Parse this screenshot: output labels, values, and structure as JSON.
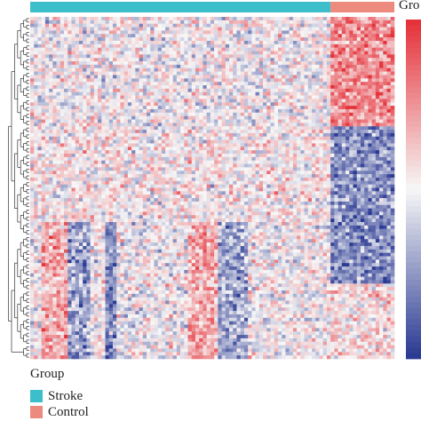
{
  "chart_data": {
    "type": "heatmap",
    "annotation_track": {
      "label": "Gro",
      "segments": [
        {
          "group": "Stroke",
          "columns": 80
        },
        {
          "group": "Control",
          "columns": 17
        }
      ]
    },
    "legend": {
      "title": "Group",
      "entries": [
        {
          "name": "Stroke",
          "color": "#3dbecb"
        },
        {
          "name": "Control",
          "color": "#ec8a7e"
        }
      ]
    },
    "colors": {
      "high": "#e5323a",
      "mid": "#f7f7f7",
      "low": "#2b3a93"
    },
    "n_rows": 100,
    "n_cols": 97,
    "row_clusters": [
      {
        "rows": 32,
        "stroke_mean": 0.0,
        "control_mean": 0.85
      },
      {
        "rows": 28,
        "stroke_mean": 0.1,
        "control_mean": -0.85
      },
      {
        "rows": 18,
        "stroke_mean": 0.0,
        "control_mean": -0.9
      },
      {
        "rows": 22,
        "stroke_mean": 0.0,
        "control_mean": 0.2
      }
    ],
    "stroke_column_blocks": [
      {
        "start": 3,
        "end": 10,
        "bias": 0.6
      },
      {
        "start": 10,
        "end": 16,
        "bias": -0.7
      },
      {
        "start": 20,
        "end": 23,
        "bias": -0.9
      },
      {
        "start": 42,
        "end": 50,
        "bias": 0.6
      },
      {
        "start": 50,
        "end": 58,
        "bias": -0.6
      }
    ]
  }
}
